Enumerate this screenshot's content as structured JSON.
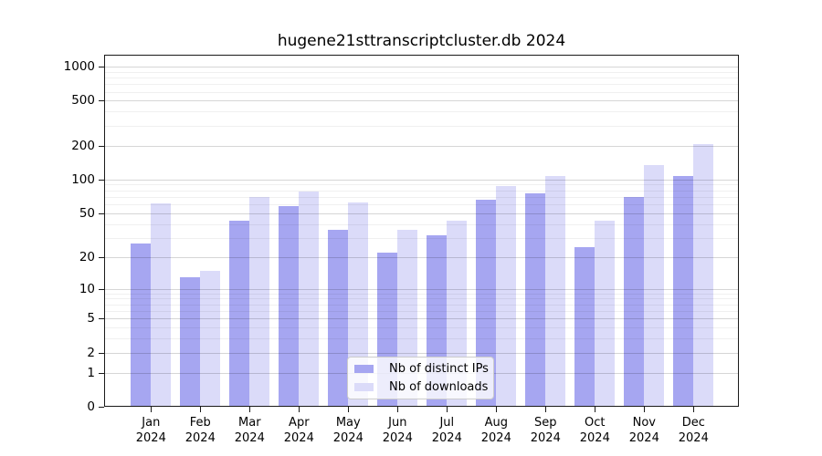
{
  "chart_data": {
    "type": "bar",
    "title": "hugene21sttranscriptcluster.db 2024",
    "categories": [
      "Jan",
      "Feb",
      "Mar",
      "Apr",
      "May",
      "Jun",
      "Jul",
      "Aug",
      "Sep",
      "Oct",
      "Nov",
      "Dec"
    ],
    "x_tick_second_line": "2024",
    "series": [
      {
        "name": "Nb of distinct IPs",
        "color": "#a6a6f1",
        "values": [
          27,
          13,
          43,
          58,
          36,
          22,
          32,
          67,
          76,
          25,
          70,
          108
        ]
      },
      {
        "name": "Nb of downloads",
        "color": "#dbdbf9",
        "values": [
          62,
          15,
          71,
          79,
          63,
          36,
          43,
          88,
          109,
          43,
          135,
          210
        ]
      }
    ],
    "y_axis": {
      "scale": "log1p",
      "tick_labels": [
        "1000",
        "500",
        "200",
        "100",
        "50",
        "20",
        "10",
        "5",
        "2",
        "1",
        "0"
      ],
      "tick_values": [
        1000,
        500,
        200,
        100,
        50,
        20,
        10,
        5,
        2,
        1,
        0
      ],
      "minor_gridline_values": [
        3,
        4,
        6,
        7,
        8,
        9,
        30,
        40,
        60,
        70,
        80,
        90,
        300,
        400,
        600,
        700,
        800,
        900
      ],
      "ylim": [
        0,
        1260
      ]
    },
    "grid": "both",
    "legend": {
      "position": "lower center inside",
      "labels": [
        "Nb of distinct IPs",
        "Nb of downloads"
      ]
    }
  }
}
